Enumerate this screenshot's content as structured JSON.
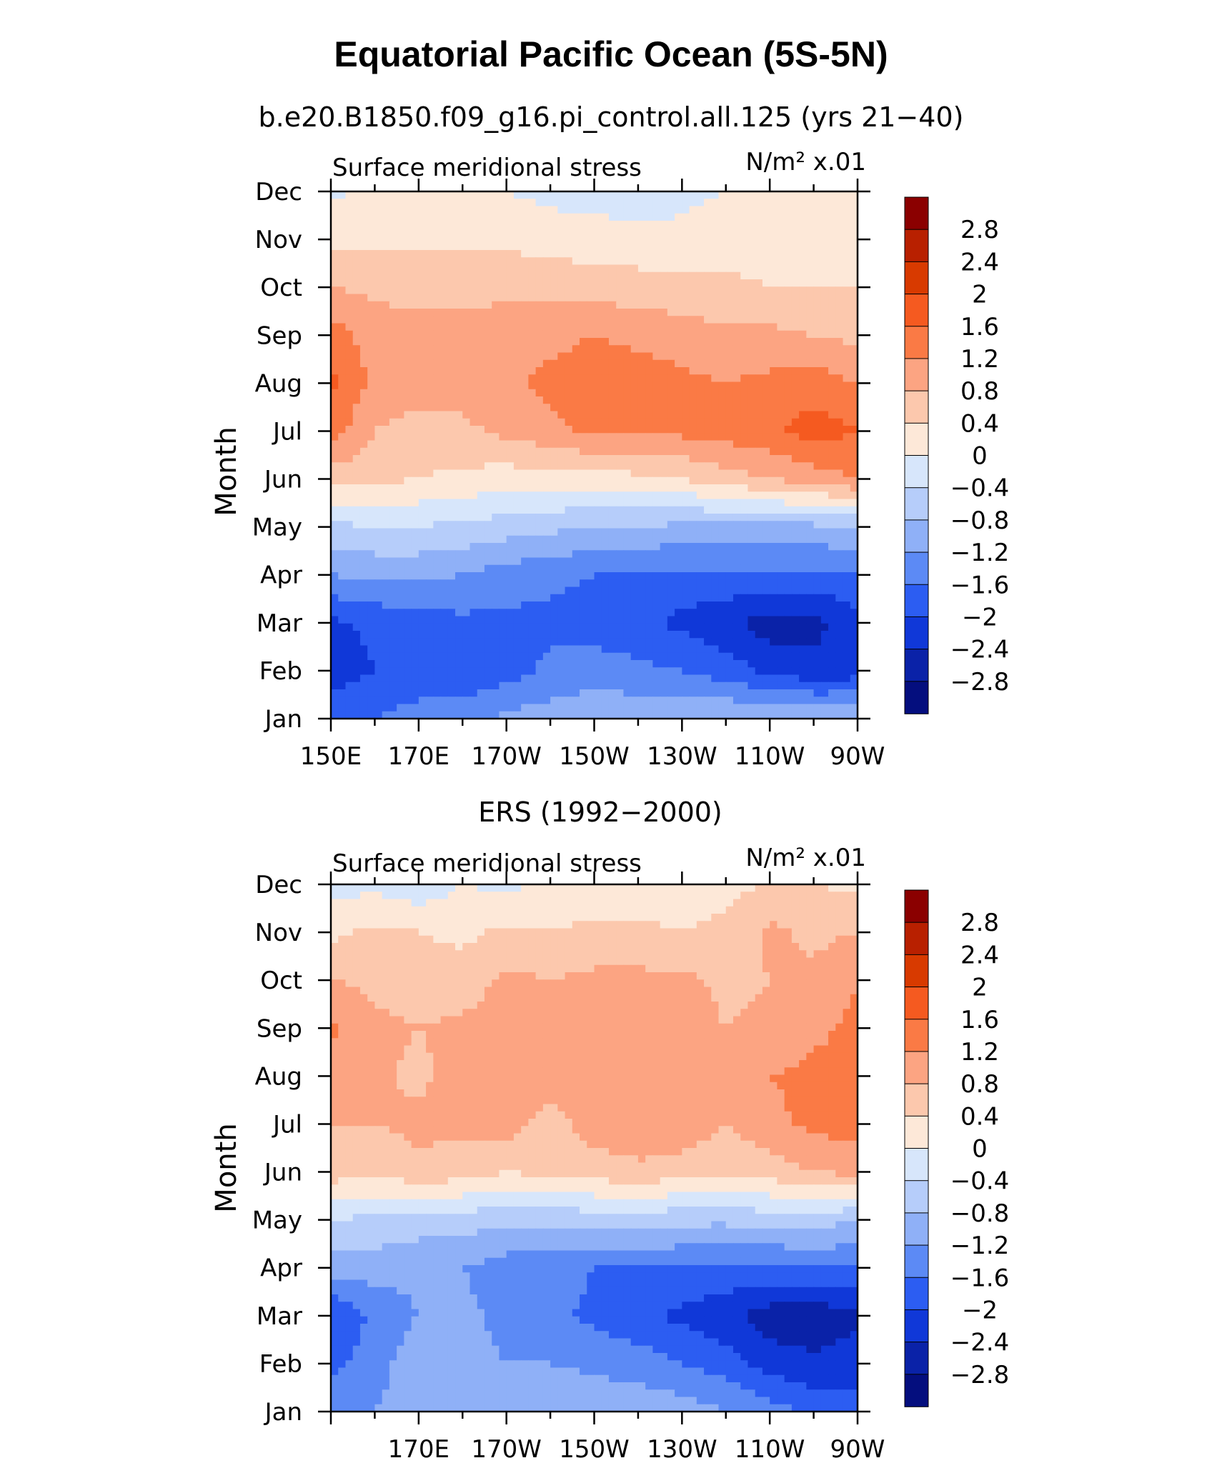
{
  "figure": {
    "title": "Equatorial Pacific Ocean (5S-5N)"
  },
  "colorbar": {
    "labels": [
      "2.8",
      "2.4",
      "2",
      "1.6",
      "1.2",
      "0.8",
      "0.4",
      "0",
      "−0.4",
      "−0.8",
      "−1.2",
      "−1.6",
      "−2",
      "−2.4",
      "−2.8"
    ],
    "colors": [
      "#8b0000",
      "#b82000",
      "#d83a00",
      "#f55a20",
      "#fa7a45",
      "#fca482",
      "#fcc8ad",
      "#fde8d8",
      "#d7e6fb",
      "#b6cdfa",
      "#8fb0f7",
      "#5c8af5",
      "#2c5df2",
      "#1038d8",
      "#0a22a8",
      "#040e7e"
    ]
  },
  "chart_data": [
    {
      "type": "heatmap",
      "title": "b.e20.B1850.f09_g16.pi_control.all.125 (yrs 21−40)",
      "left_label": "Surface meridional stress",
      "units": "N/m² x.01",
      "ylabel": "Month",
      "x_tick_labels": [
        "150E",
        "170E",
        "170W",
        "150W",
        "130W",
        "110W",
        "90W"
      ],
      "y_tick_labels": [
        "Jan",
        "Feb",
        "Mar",
        "Apr",
        "May",
        "Jun",
        "Jul",
        "Aug",
        "Sep",
        "Oct",
        "Nov",
        "Dec"
      ],
      "x": [
        "150E",
        "160E",
        "170E",
        "180",
        "170W",
        "160W",
        "150W",
        "140W",
        "130W",
        "120W",
        "110W",
        "100W",
        "90W"
      ],
      "y": [
        "Jan",
        "Feb",
        "Mar",
        "Apr",
        "May",
        "Jun",
        "Jul",
        "Aug",
        "Sep",
        "Oct",
        "Nov",
        "Dec"
      ],
      "z": [
        [
          -1.8,
          -1.6,
          -1.4,
          -1.3,
          -1.1,
          -1.0,
          -0.9,
          -0.9,
          -0.9,
          -0.8,
          -0.8,
          -0.8,
          -0.9
        ],
        [
          -2.2,
          -2.0,
          -1.9,
          -2.0,
          -1.8,
          -1.5,
          -1.4,
          -1.5,
          -1.6,
          -1.8,
          -2.1,
          -2.3,
          -2.2
        ],
        [
          -2.1,
          -1.9,
          -1.8,
          -1.7,
          -1.7,
          -1.7,
          -1.8,
          -1.9,
          -2.1,
          -2.3,
          -2.6,
          -2.5,
          -2.2
        ],
        [
          -1.2,
          -1.1,
          -1.1,
          -1.2,
          -1.4,
          -1.5,
          -1.6,
          -1.7,
          -1.7,
          -1.7,
          -1.7,
          -1.7,
          -1.6
        ],
        [
          -0.5,
          -0.4,
          -0.4,
          -0.5,
          -0.6,
          -0.7,
          -0.8,
          -0.8,
          -0.9,
          -0.9,
          -0.9,
          -0.9,
          -0.8
        ],
        [
          0.6,
          0.5,
          0.4,
          0.3,
          0.2,
          0.2,
          0.2,
          0.3,
          0.4,
          0.6,
          0.8,
          1.0,
          1.2
        ],
        [
          1.4,
          0.8,
          0.6,
          0.7,
          0.9,
          1.1,
          1.3,
          1.3,
          1.3,
          1.4,
          1.5,
          1.8,
          1.6
        ],
        [
          1.7,
          1.1,
          1.0,
          1.0,
          1.1,
          1.3,
          1.4,
          1.4,
          1.3,
          1.2,
          1.3,
          1.4,
          1.2
        ],
        [
          1.4,
          1.0,
          0.9,
          0.9,
          1.0,
          1.1,
          1.2,
          1.1,
          1.0,
          0.9,
          0.9,
          0.8,
          0.7
        ],
        [
          0.8,
          0.7,
          0.7,
          0.7,
          0.7,
          0.7,
          0.6,
          0.6,
          0.5,
          0.5,
          0.4,
          0.4,
          0.4
        ],
        [
          0.3,
          0.3,
          0.3,
          0.3,
          0.3,
          0.2,
          0.2,
          0.1,
          0.1,
          0.2,
          0.2,
          0.3,
          0.3
        ],
        [
          -0.1,
          0.1,
          0.1,
          0.1,
          0.0,
          -0.1,
          -0.2,
          -0.2,
          -0.1,
          0.0,
          0.1,
          0.2,
          0.2
        ]
      ],
      "zlim": [
        -3.2,
        3.2
      ]
    },
    {
      "type": "heatmap",
      "title": "ERS (1992−2000)",
      "left_label": "Surface meridional stress",
      "units": "N/m² x.01",
      "ylabel": "Month",
      "x_tick_labels": [
        "",
        "170E",
        "170W",
        "150W",
        "130W",
        "110W",
        "90W"
      ],
      "y_tick_labels": [
        "Jan",
        "Feb",
        "Mar",
        "Apr",
        "May",
        "Jun",
        "Jul",
        "Aug",
        "Sep",
        "Oct",
        "Nov",
        "Dec"
      ],
      "x": [
        "150E",
        "160E",
        "170E",
        "180",
        "170W",
        "160W",
        "150W",
        "140W",
        "130W",
        "120W",
        "110W",
        "100W",
        "90W"
      ],
      "y": [
        "Jan",
        "Feb",
        "Mar",
        "Apr",
        "May",
        "Jun",
        "Jul",
        "Aug",
        "Sep",
        "Oct",
        "Nov",
        "Dec"
      ],
      "z": [
        [
          -1.3,
          -1.2,
          -0.9,
          -1.1,
          -0.9,
          -0.8,
          -0.9,
          -0.9,
          -1.0,
          -1.2,
          -1.4,
          -1.7,
          -1.8
        ],
        [
          -1.7,
          -1.4,
          -0.9,
          -1.1,
          -1.2,
          -1.2,
          -1.3,
          -1.4,
          -1.6,
          -1.8,
          -2.2,
          -2.3,
          -2.2
        ],
        [
          -2.0,
          -1.5,
          -1.2,
          -1.1,
          -1.3,
          -1.5,
          -1.7,
          -1.9,
          -2.1,
          -2.3,
          -2.6,
          -2.7,
          -2.5
        ],
        [
          -1.0,
          -1.0,
          -1.1,
          -1.2,
          -1.4,
          -1.4,
          -1.6,
          -1.6,
          -1.6,
          -1.7,
          -1.7,
          -1.6,
          -1.6
        ],
        [
          -0.4,
          -0.5,
          -0.6,
          -0.6,
          -0.7,
          -0.7,
          -0.6,
          -0.6,
          -0.7,
          -0.7,
          -0.6,
          -0.6,
          -0.8
        ],
        [
          0.6,
          0.5,
          0.7,
          0.6,
          0.4,
          0.5,
          0.6,
          0.7,
          0.6,
          0.5,
          0.6,
          0.8,
          0.9
        ],
        [
          0.8,
          0.8,
          0.9,
          0.9,
          1.0,
          0.6,
          1.0,
          1.1,
          1.1,
          0.8,
          1.1,
          1.3,
          1.4
        ],
        [
          1.0,
          0.9,
          0.7,
          1.0,
          1.1,
          1.0,
          1.1,
          1.0,
          1.0,
          0.9,
          1.2,
          1.3,
          1.4
        ],
        [
          1.3,
          0.9,
          0.8,
          0.9,
          0.9,
          1.0,
          1.0,
          1.0,
          1.0,
          0.8,
          0.9,
          1.1,
          1.3
        ],
        [
          0.8,
          0.7,
          0.6,
          0.6,
          0.9,
          0.8,
          0.9,
          0.9,
          0.9,
          0.7,
          0.8,
          0.9,
          1.2
        ],
        [
          0.3,
          0.5,
          0.4,
          0.3,
          0.5,
          0.4,
          0.5,
          0.5,
          0.4,
          0.5,
          0.9,
          0.7,
          0.8
        ],
        [
          -0.2,
          -0.1,
          -0.3,
          0.0,
          -0.1,
          0.1,
          0.1,
          0.1,
          0.2,
          0.3,
          0.4,
          0.4,
          0.3
        ]
      ],
      "zlim": [
        -3.2,
        3.2
      ]
    }
  ]
}
